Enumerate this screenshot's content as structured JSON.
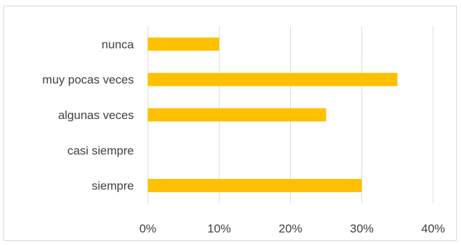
{
  "chart_data": {
    "type": "bar",
    "orientation": "horizontal",
    "title": "",
    "xlabel": "",
    "ylabel": "",
    "categories": [
      "nunca",
      "muy pocas veces",
      "algunas veces",
      "casi siempre",
      "siempre"
    ],
    "values": [
      0.1,
      0.35,
      0.25,
      0.0,
      0.3
    ],
    "xlim": [
      0,
      0.4
    ],
    "x_ticks": [
      "0%",
      "10%",
      "20%",
      "30%",
      "40%"
    ],
    "grid": "vertical",
    "legend": "none",
    "colors": {
      "bar": "#FFC000",
      "grid": "#d9d9d9",
      "text": "#404040"
    }
  }
}
